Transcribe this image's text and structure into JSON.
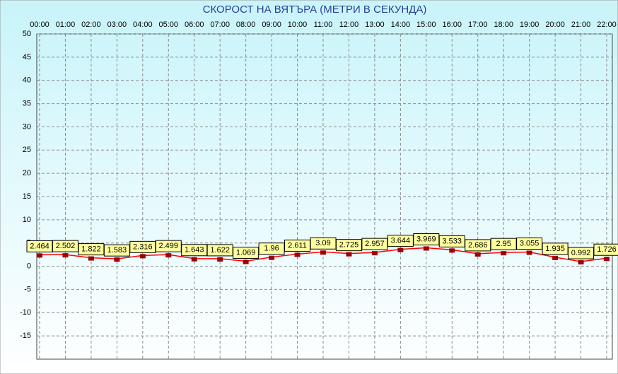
{
  "chart_data": {
    "type": "line",
    "title": "СКОРОСТ НА ВЯТЪРА (МЕТРИ В СЕКУНДА)",
    "categories": [
      "00:00",
      "01:00",
      "02:00",
      "03:00",
      "04:00",
      "05:00",
      "06:00",
      "07:00",
      "08:00",
      "09:00",
      "10:00",
      "11:00",
      "12:00",
      "13:00",
      "14:00",
      "15:00",
      "16:00",
      "17:00",
      "18:00",
      "19:00",
      "20:00",
      "21:00",
      "22:00"
    ],
    "values": [
      2.464,
      2.502,
      1.822,
      1.583,
      2.316,
      2.499,
      1.643,
      1.622,
      1.069,
      1.96,
      2.611,
      3.09,
      2.725,
      2.957,
      3.644,
      3.969,
      3.533,
      2.686,
      2.95,
      3.055,
      1.935,
      0.992,
      1.726
    ],
    "color": "#ff0000",
    "marker_color": "#a00000",
    "ylim": [
      -20,
      50
    ],
    "yticks": [
      -15,
      -10,
      -5,
      0,
      5,
      10,
      15,
      20,
      25,
      30,
      35,
      40,
      45,
      50
    ],
    "grid": true
  }
}
